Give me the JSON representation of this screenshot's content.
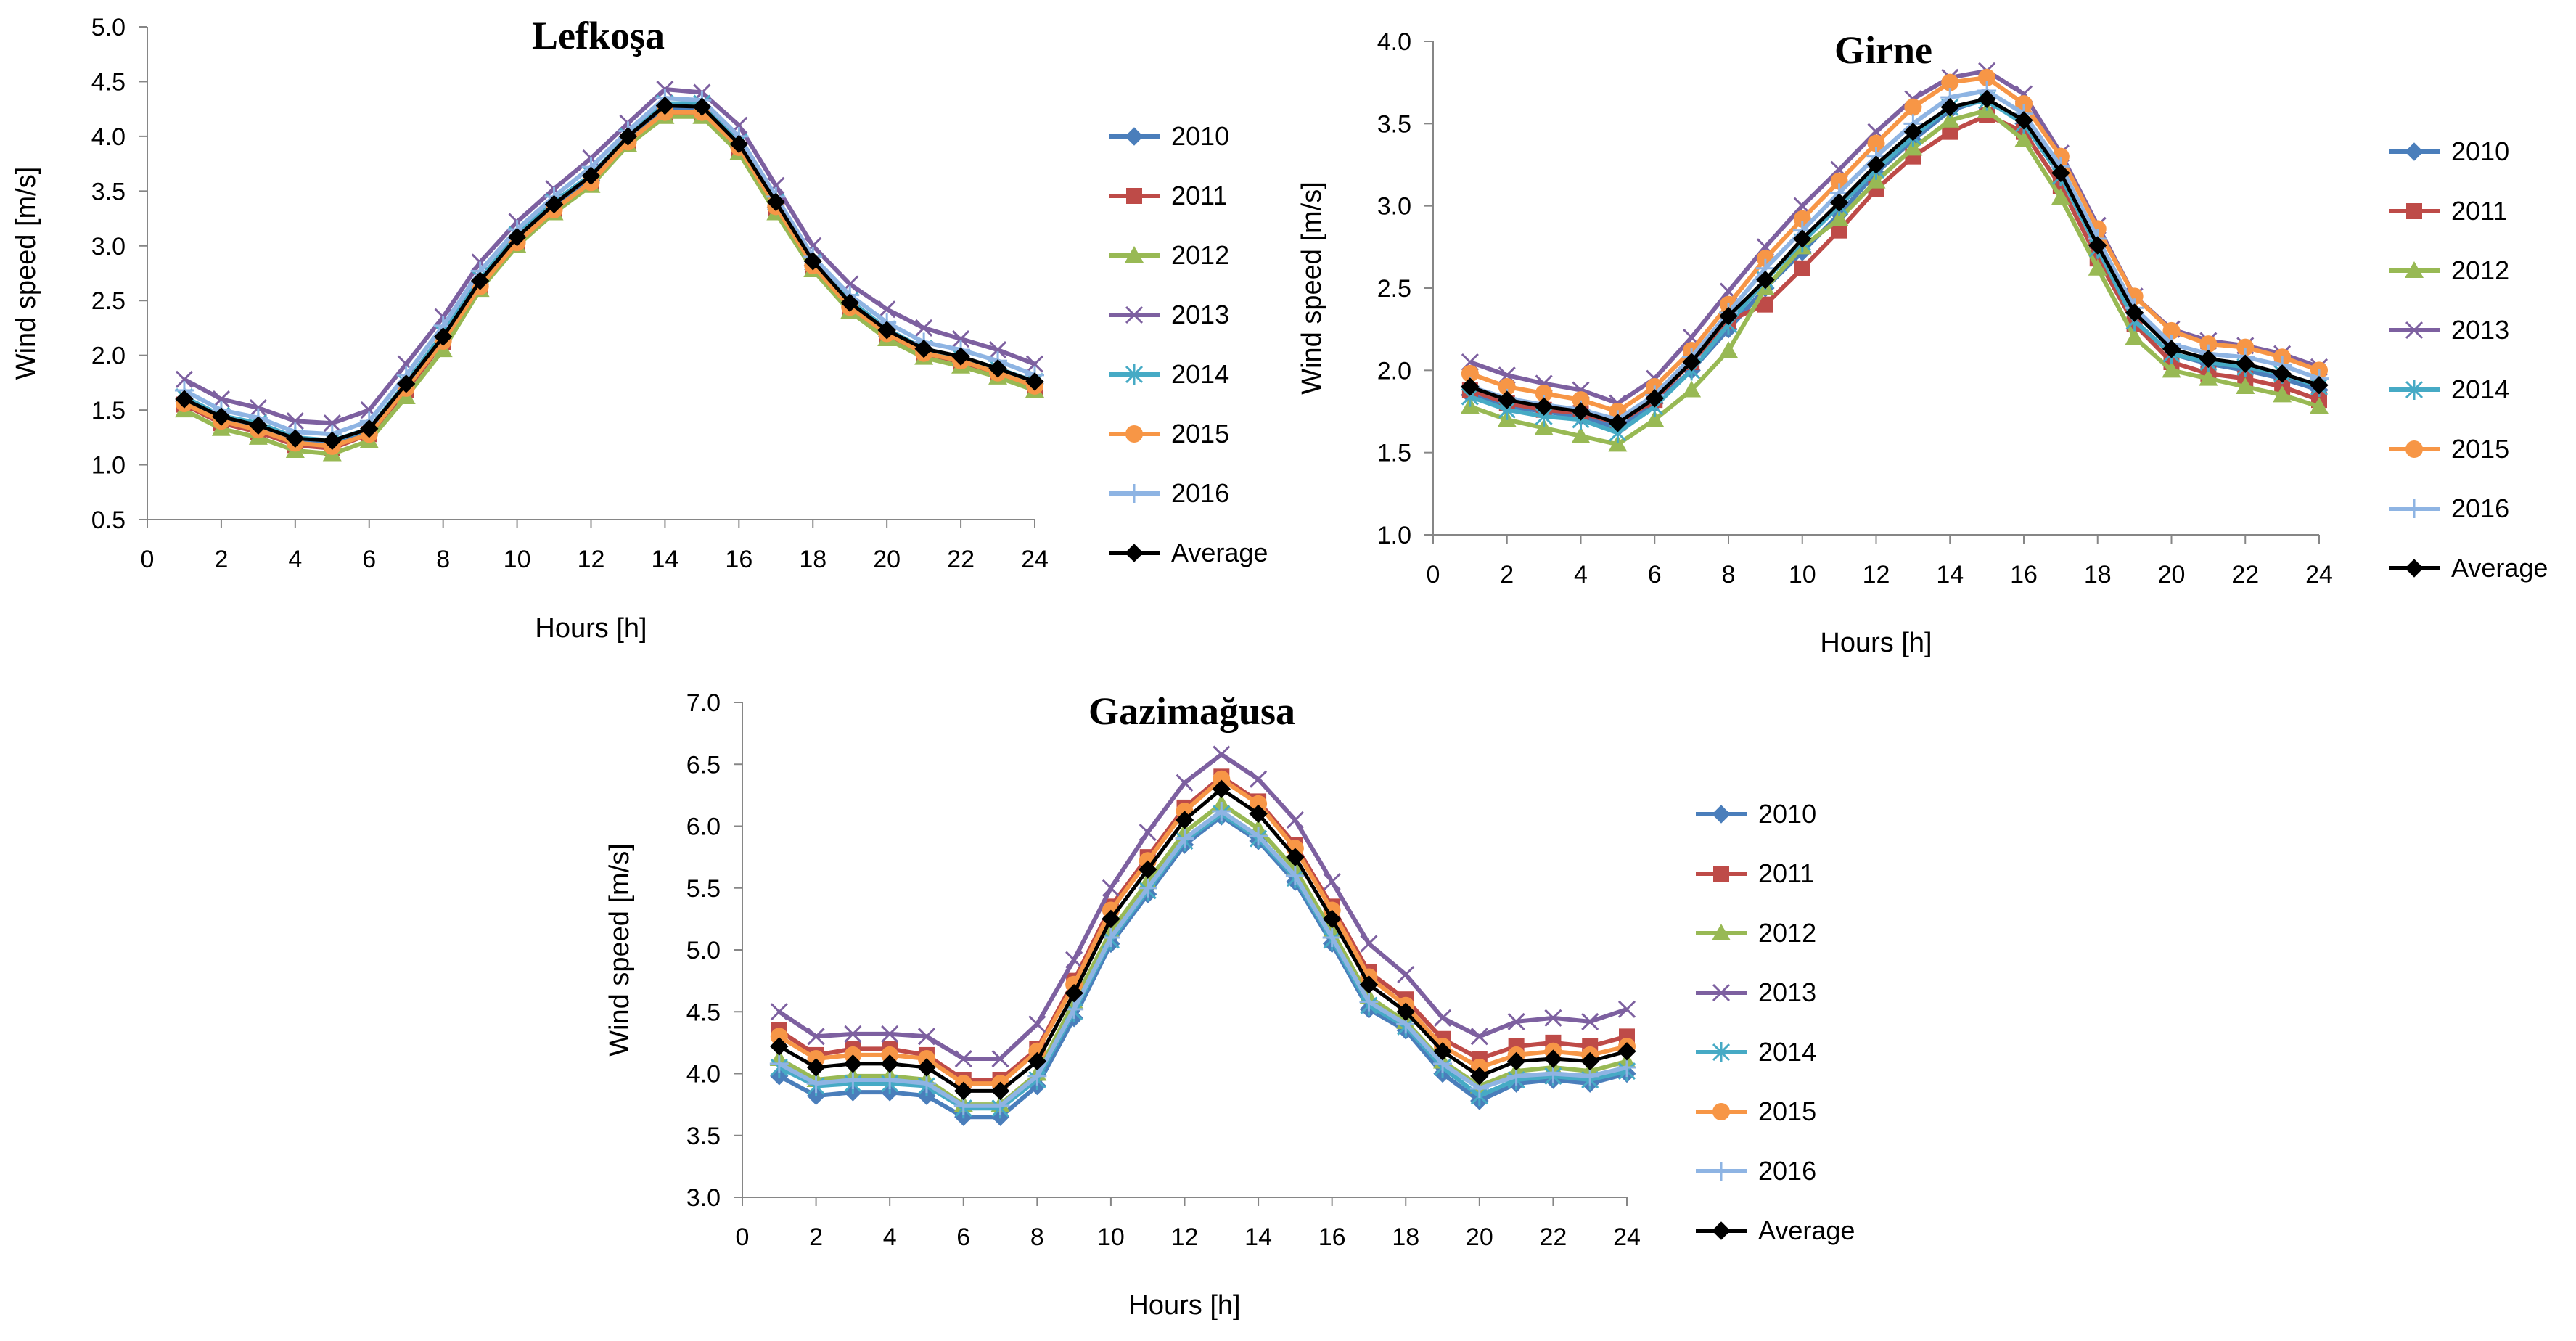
{
  "chart_data": [
    {
      "type": "line",
      "title": "Lefkoşa",
      "xlabel": "Hours [h]",
      "ylabel": "Wind speed [m/s]",
      "xlim": [
        0,
        24
      ],
      "ylim": [
        0.5,
        5.0
      ],
      "xticks": [
        "0",
        "2",
        "4",
        "6",
        "8",
        "10",
        "12",
        "14",
        "16",
        "18",
        "20",
        "22",
        "24"
      ],
      "yticks": [
        "0.5",
        "1.0",
        "1.5",
        "2.0",
        "2.5",
        "3.0",
        "3.5",
        "4.0",
        "4.5",
        "5.0"
      ],
      "grid": false,
      "legend_position": "right",
      "x": [
        1,
        2,
        3,
        4,
        5,
        6,
        7,
        8,
        9,
        10,
        11,
        12,
        13,
        14,
        15,
        16,
        17,
        18,
        19,
        20,
        21,
        22,
        23,
        24
      ],
      "series": [
        {
          "name": "2010",
          "color": "#4a7ebb",
          "marker": "diamond",
          "values": [
            1.58,
            1.42,
            1.35,
            1.22,
            1.2,
            1.3,
            1.72,
            2.15,
            2.65,
            3.05,
            3.35,
            3.6,
            3.95,
            4.25,
            4.25,
            3.9,
            3.35,
            2.82,
            2.46,
            2.2,
            2.02,
            1.95,
            1.85,
            1.74
          ]
        },
        {
          "name": "2011",
          "color": "#be4b48",
          "marker": "square",
          "values": [
            1.55,
            1.38,
            1.3,
            1.18,
            1.15,
            1.28,
            1.68,
            2.12,
            2.62,
            3.02,
            3.32,
            3.58,
            3.95,
            4.2,
            4.2,
            3.88,
            3.35,
            2.8,
            2.42,
            2.18,
            2.0,
            1.93,
            1.82,
            1.7
          ]
        },
        {
          "name": "2012",
          "color": "#98b954",
          "marker": "triangle",
          "values": [
            1.5,
            1.33,
            1.25,
            1.13,
            1.1,
            1.22,
            1.62,
            2.05,
            2.6,
            3.0,
            3.3,
            3.55,
            3.92,
            4.18,
            4.18,
            3.85,
            3.3,
            2.78,
            2.4,
            2.15,
            1.98,
            1.9,
            1.8,
            1.68
          ]
        },
        {
          "name": "2013",
          "color": "#7d60a0",
          "marker": "x",
          "values": [
            1.78,
            1.6,
            1.52,
            1.4,
            1.38,
            1.5,
            1.92,
            2.35,
            2.85,
            3.22,
            3.52,
            3.8,
            4.12,
            4.43,
            4.4,
            4.1,
            3.55,
            3.0,
            2.65,
            2.42,
            2.25,
            2.15,
            2.05,
            1.92
          ]
        },
        {
          "name": "2014",
          "color": "#46aac5",
          "marker": "star",
          "values": [
            1.62,
            1.45,
            1.38,
            1.25,
            1.22,
            1.33,
            1.75,
            2.2,
            2.7,
            3.1,
            3.4,
            3.65,
            4.0,
            4.3,
            4.3,
            3.95,
            3.4,
            2.85,
            2.5,
            2.24,
            2.06,
            1.98,
            1.88,
            1.76
          ]
        },
        {
          "name": "2015",
          "color": "#f79646",
          "marker": "circle",
          "values": [
            1.56,
            1.4,
            1.32,
            1.2,
            1.17,
            1.28,
            1.7,
            2.13,
            2.63,
            3.03,
            3.33,
            3.58,
            3.95,
            4.22,
            4.22,
            3.9,
            3.36,
            2.82,
            2.44,
            2.2,
            2.02,
            1.95,
            1.84,
            1.72
          ]
        },
        {
          "name": "2016",
          "color": "#8eb4e3",
          "marker": "plus",
          "values": [
            1.68,
            1.5,
            1.43,
            1.3,
            1.28,
            1.4,
            1.82,
            2.27,
            2.77,
            3.15,
            3.45,
            3.72,
            4.05,
            4.35,
            4.33,
            4.0,
            3.45,
            2.9,
            2.55,
            2.3,
            2.12,
            2.05,
            1.95,
            1.82
          ]
        },
        {
          "name": "Average",
          "color": "#000000",
          "marker": "diamond",
          "values": [
            1.6,
            1.44,
            1.36,
            1.24,
            1.22,
            1.33,
            1.74,
            2.17,
            2.68,
            3.08,
            3.38,
            3.64,
            4.0,
            4.28,
            4.27,
            3.93,
            3.4,
            2.86,
            2.48,
            2.23,
            2.06,
            1.99,
            1.88,
            1.76
          ]
        }
      ]
    },
    {
      "type": "line",
      "title": "Girne",
      "xlabel": "Hours [h]",
      "ylabel": "Wind speed [m/s]",
      "xlim": [
        0,
        24
      ],
      "ylim": [
        1.0,
        4.0
      ],
      "xticks": [
        "0",
        "2",
        "4",
        "6",
        "8",
        "10",
        "12",
        "14",
        "16",
        "18",
        "20",
        "22",
        "24"
      ],
      "yticks": [
        "1.0",
        "1.5",
        "2.0",
        "2.5",
        "3.0",
        "3.5",
        "4.0"
      ],
      "grid": false,
      "legend_position": "right",
      "x": [
        1,
        2,
        3,
        4,
        5,
        6,
        7,
        8,
        9,
        10,
        11,
        12,
        13,
        14,
        15,
        16,
        17,
        18,
        19,
        20,
        21,
        22,
        23,
        24
      ],
      "series": [
        {
          "name": "2010",
          "color": "#4a7ebb",
          "marker": "diamond",
          "values": [
            1.85,
            1.78,
            1.75,
            1.72,
            1.65,
            1.8,
            2.0,
            2.25,
            2.5,
            2.72,
            2.95,
            3.2,
            3.4,
            3.58,
            3.65,
            3.5,
            3.18,
            2.75,
            2.3,
            2.1,
            2.04,
            2.0,
            1.95,
            1.88
          ]
        },
        {
          "name": "2011",
          "color": "#be4b48",
          "marker": "square",
          "values": [
            1.88,
            1.8,
            1.76,
            1.74,
            1.68,
            1.82,
            2.05,
            2.3,
            2.4,
            2.62,
            2.85,
            3.1,
            3.3,
            3.45,
            3.55,
            3.45,
            3.12,
            2.68,
            2.28,
            2.05,
            1.98,
            1.95,
            1.9,
            1.82
          ]
        },
        {
          "name": "2012",
          "color": "#98b954",
          "marker": "triangle",
          "values": [
            1.78,
            1.7,
            1.65,
            1.6,
            1.55,
            1.7,
            1.88,
            2.12,
            2.5,
            2.75,
            2.92,
            3.15,
            3.35,
            3.52,
            3.58,
            3.4,
            3.05,
            2.62,
            2.2,
            2.0,
            1.95,
            1.9,
            1.85,
            1.78
          ]
        },
        {
          "name": "2013",
          "color": "#7d60a0",
          "marker": "x",
          "values": [
            2.05,
            1.97,
            1.92,
            1.88,
            1.8,
            1.95,
            2.2,
            2.48,
            2.75,
            3.0,
            3.22,
            3.45,
            3.65,
            3.78,
            3.82,
            3.68,
            3.32,
            2.88,
            2.45,
            2.25,
            2.18,
            2.15,
            2.1,
            2.02
          ]
        },
        {
          "name": "2014",
          "color": "#46aac5",
          "marker": "star",
          "values": [
            1.84,
            1.76,
            1.72,
            1.7,
            1.62,
            1.78,
            2.0,
            2.28,
            2.55,
            2.78,
            3.0,
            3.22,
            3.42,
            3.6,
            3.64,
            3.5,
            3.18,
            2.74,
            2.3,
            2.1,
            2.05,
            2.02,
            1.98,
            1.9
          ]
        },
        {
          "name": "2015",
          "color": "#f79646",
          "marker": "circle",
          "values": [
            1.98,
            1.9,
            1.86,
            1.82,
            1.75,
            1.9,
            2.12,
            2.4,
            2.68,
            2.92,
            3.15,
            3.38,
            3.6,
            3.75,
            3.78,
            3.62,
            3.3,
            2.86,
            2.45,
            2.24,
            2.16,
            2.14,
            2.08,
            2.0
          ]
        },
        {
          "name": "2016",
          "color": "#8eb4e3",
          "marker": "plus",
          "values": [
            1.9,
            1.83,
            1.79,
            1.76,
            1.7,
            1.85,
            2.08,
            2.35,
            2.62,
            2.85,
            3.08,
            3.3,
            3.5,
            3.66,
            3.7,
            3.56,
            3.24,
            2.8,
            2.38,
            2.16,
            2.1,
            2.08,
            2.03,
            1.95
          ]
        },
        {
          "name": "Average",
          "color": "#000000",
          "marker": "diamond",
          "values": [
            1.9,
            1.82,
            1.78,
            1.75,
            1.68,
            1.83,
            2.05,
            2.33,
            2.55,
            2.8,
            3.02,
            3.25,
            3.45,
            3.6,
            3.65,
            3.52,
            3.2,
            2.76,
            2.35,
            2.13,
            2.07,
            2.04,
            1.98,
            1.91
          ]
        }
      ]
    },
    {
      "type": "line",
      "title": "Gazimağusa",
      "xlabel": "Hours [h]",
      "ylabel": "Wind speed [m/s]",
      "xlim": [
        0,
        24
      ],
      "ylim": [
        3.0,
        7.0
      ],
      "xticks": [
        "0",
        "2",
        "4",
        "6",
        "8",
        "10",
        "12",
        "14",
        "16",
        "18",
        "20",
        "22",
        "24"
      ],
      "yticks": [
        "3.0",
        "3.5",
        "4.0",
        "4.5",
        "5.0",
        "5.5",
        "6.0",
        "6.5",
        "7.0"
      ],
      "grid": false,
      "legend_position": "right",
      "x": [
        1,
        2,
        3,
        4,
        5,
        6,
        7,
        8,
        9,
        10,
        11,
        12,
        13,
        14,
        15,
        16,
        17,
        18,
        19,
        20,
        21,
        22,
        23,
        24
      ],
      "series": [
        {
          "name": "2010",
          "color": "#4a7ebb",
          "marker": "diamond",
          "values": [
            3.98,
            3.82,
            3.85,
            3.85,
            3.82,
            3.65,
            3.65,
            3.9,
            4.45,
            5.05,
            5.45,
            5.85,
            6.08,
            5.88,
            5.55,
            5.05,
            4.52,
            4.35,
            4.0,
            3.78,
            3.92,
            3.95,
            3.92,
            4.0
          ]
        },
        {
          "name": "2011",
          "color": "#be4b48",
          "marker": "square",
          "values": [
            4.35,
            4.15,
            4.2,
            4.2,
            4.15,
            3.95,
            3.95,
            4.2,
            4.75,
            5.35,
            5.75,
            6.15,
            6.4,
            6.2,
            5.85,
            5.35,
            4.82,
            4.6,
            4.28,
            4.12,
            4.22,
            4.25,
            4.22,
            4.3
          ]
        },
        {
          "name": "2012",
          "color": "#98b954",
          "marker": "triangle",
          "values": [
            4.12,
            3.95,
            3.98,
            3.98,
            3.95,
            3.75,
            3.75,
            4.0,
            4.58,
            5.15,
            5.55,
            5.95,
            6.18,
            5.98,
            5.65,
            5.15,
            4.62,
            4.42,
            4.1,
            3.9,
            4.02,
            4.05,
            4.02,
            4.1
          ]
        },
        {
          "name": "2013",
          "color": "#7d60a0",
          "marker": "x",
          "values": [
            4.5,
            4.3,
            4.32,
            4.32,
            4.3,
            4.12,
            4.12,
            4.4,
            4.92,
            5.5,
            5.95,
            6.35,
            6.58,
            6.38,
            6.05,
            5.55,
            5.05,
            4.8,
            4.45,
            4.3,
            4.42,
            4.45,
            4.42,
            4.52
          ]
        },
        {
          "name": "2014",
          "color": "#46aac5",
          "marker": "star",
          "values": [
            4.05,
            3.9,
            3.92,
            3.92,
            3.9,
            3.72,
            3.72,
            3.95,
            4.5,
            5.08,
            5.48,
            5.88,
            6.1,
            5.9,
            5.58,
            5.08,
            4.55,
            4.38,
            4.05,
            3.82,
            3.95,
            3.98,
            3.95,
            4.02
          ]
        },
        {
          "name": "2015",
          "color": "#f79646",
          "marker": "circle",
          "values": [
            4.3,
            4.12,
            4.15,
            4.15,
            4.12,
            3.92,
            3.92,
            4.18,
            4.72,
            5.32,
            5.72,
            6.12,
            6.38,
            6.18,
            5.82,
            5.32,
            4.78,
            4.55,
            4.22,
            4.05,
            4.15,
            4.18,
            4.15,
            4.22
          ]
        },
        {
          "name": "2016",
          "color": "#8eb4e3",
          "marker": "plus",
          "values": [
            4.08,
            3.92,
            3.95,
            3.95,
            3.92,
            3.74,
            3.74,
            3.98,
            4.52,
            5.1,
            5.5,
            5.9,
            6.12,
            5.92,
            5.6,
            5.1,
            4.58,
            4.4,
            4.08,
            3.88,
            3.98,
            4.0,
            3.98,
            4.05
          ]
        },
        {
          "name": "Average",
          "color": "#000000",
          "marker": "diamond",
          "values": [
            4.22,
            4.05,
            4.08,
            4.08,
            4.05,
            3.86,
            3.86,
            4.1,
            4.65,
            5.25,
            5.65,
            6.05,
            6.3,
            6.1,
            5.75,
            5.25,
            4.72,
            4.5,
            4.18,
            3.98,
            4.1,
            4.12,
            4.1,
            4.18
          ]
        }
      ]
    }
  ]
}
